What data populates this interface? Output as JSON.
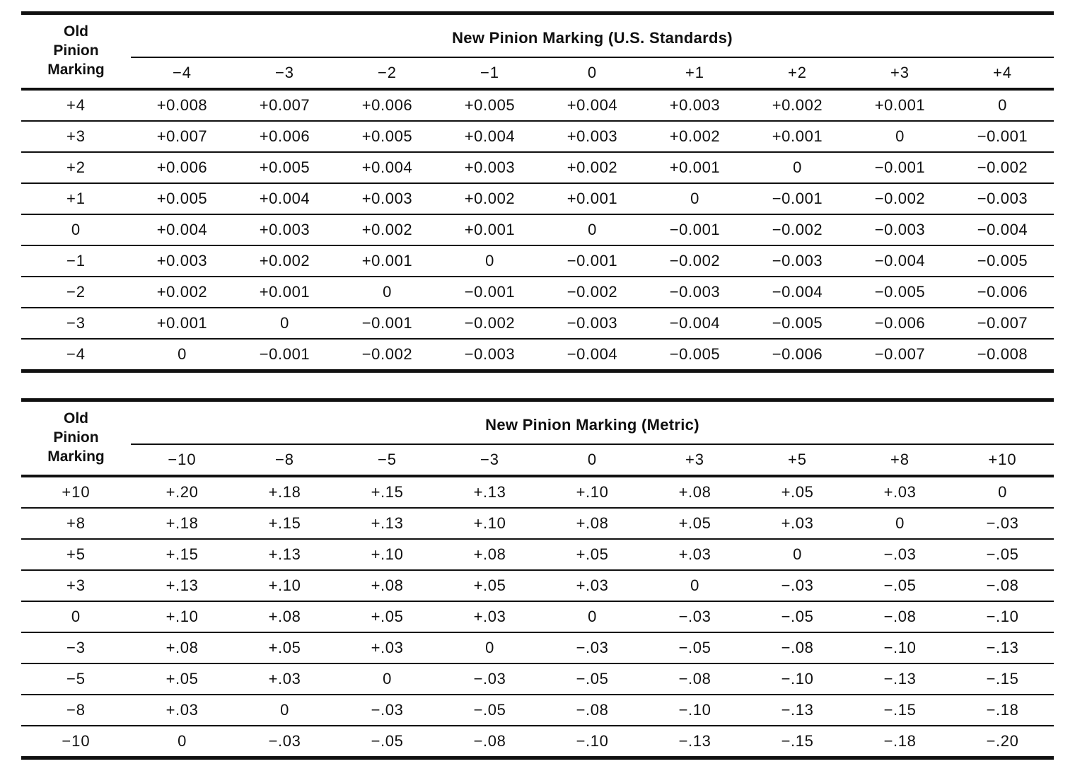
{
  "page": {
    "paper_color": "#ffffff",
    "ink_color": "#101010"
  },
  "us_table": {
    "row_header": "Old\nPinion\nMarking",
    "title": "New Pinion Marking (U.S. Standards)",
    "columns": [
      "−4",
      "−3",
      "−2",
      "−1",
      "0",
      "+1",
      "+2",
      "+3",
      "+4"
    ],
    "rows": [
      {
        "label": "+4",
        "values": [
          "+0.008",
          "+0.007",
          "+0.006",
          "+0.005",
          "+0.004",
          "+0.003",
          "+0.002",
          "+0.001",
          "0"
        ]
      },
      {
        "label": "+3",
        "values": [
          "+0.007",
          "+0.006",
          "+0.005",
          "+0.004",
          "+0.003",
          "+0.002",
          "+0.001",
          "0",
          "−0.001"
        ]
      },
      {
        "label": "+2",
        "values": [
          "+0.006",
          "+0.005",
          "+0.004",
          "+0.003",
          "+0.002",
          "+0.001",
          "0",
          "−0.001",
          "−0.002"
        ]
      },
      {
        "label": "+1",
        "values": [
          "+0.005",
          "+0.004",
          "+0.003",
          "+0.002",
          "+0.001",
          "0",
          "−0.001",
          "−0.002",
          "−0.003"
        ]
      },
      {
        "label": "0",
        "values": [
          "+0.004",
          "+0.003",
          "+0.002",
          "+0.001",
          "0",
          "−0.001",
          "−0.002",
          "−0.003",
          "−0.004"
        ]
      },
      {
        "label": "−1",
        "values": [
          "+0.003",
          "+0.002",
          "+0.001",
          "0",
          "−0.001",
          "−0.002",
          "−0.003",
          "−0.004",
          "−0.005"
        ]
      },
      {
        "label": "−2",
        "values": [
          "+0.002",
          "+0.001",
          "0",
          "−0.001",
          "−0.002",
          "−0.003",
          "−0.004",
          "−0.005",
          "−0.006"
        ]
      },
      {
        "label": "−3",
        "values": [
          "+0.001",
          "0",
          "−0.001",
          "−0.002",
          "−0.003",
          "−0.004",
          "−0.005",
          "−0.006",
          "−0.007"
        ]
      },
      {
        "label": "−4",
        "values": [
          "0",
          "−0.001",
          "−0.002",
          "−0.003",
          "−0.004",
          "−0.005",
          "−0.006",
          "−0.007",
          "−0.008"
        ]
      }
    ]
  },
  "metric_table": {
    "row_header": "Old\nPinion\nMarking",
    "title": "New Pinion Marking (Metric)",
    "columns": [
      "−10",
      "−8",
      "−5",
      "−3",
      "0",
      "+3",
      "+5",
      "+8",
      "+10"
    ],
    "rows": [
      {
        "label": "+10",
        "values": [
          "+.20",
          "+.18",
          "+.15",
          "+.13",
          "+.10",
          "+.08",
          "+.05",
          "+.03",
          "0"
        ]
      },
      {
        "label": "+8",
        "values": [
          "+.18",
          "+.15",
          "+.13",
          "+.10",
          "+.08",
          "+.05",
          "+.03",
          "0",
          "−.03"
        ]
      },
      {
        "label": "+5",
        "values": [
          "+.15",
          "+.13",
          "+.10",
          "+.08",
          "+.05",
          "+.03",
          "0",
          "−.03",
          "−.05"
        ]
      },
      {
        "label": "+3",
        "values": [
          "+.13",
          "+.10",
          "+.08",
          "+.05",
          "+.03",
          "0",
          "−.03",
          "−.05",
          "−.08"
        ]
      },
      {
        "label": "0",
        "values": [
          "+.10",
          "+.08",
          "+.05",
          "+.03",
          "0",
          "−.03",
          "−.05",
          "−.08",
          "−.10"
        ]
      },
      {
        "label": "−3",
        "values": [
          "+.08",
          "+.05",
          "+.03",
          "0",
          "−.03",
          "−.05",
          "−.08",
          "−.10",
          "−.13"
        ]
      },
      {
        "label": "−5",
        "values": [
          "+.05",
          "+.03",
          "0",
          "−.03",
          "−.05",
          "−.08",
          "−.10",
          "−.13",
          "−.15"
        ]
      },
      {
        "label": "−8",
        "values": [
          "+.03",
          "0",
          "−.03",
          "−.05",
          "−.08",
          "−.10",
          "−.13",
          "−.15",
          "−.18"
        ]
      },
      {
        "label": "−10",
        "values": [
          "0",
          "−.03",
          "−.05",
          "−.08",
          "−.10",
          "−.13",
          "−.15",
          "−.18",
          "−.20"
        ]
      }
    ]
  }
}
